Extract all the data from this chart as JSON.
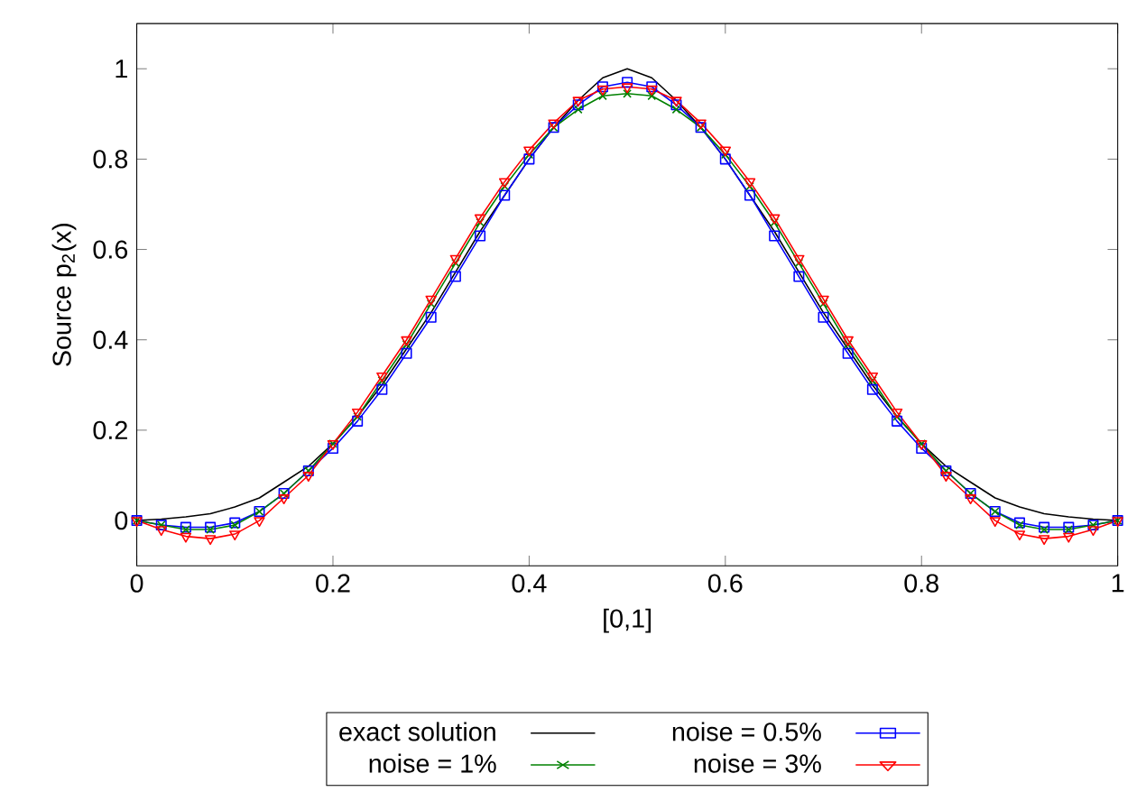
{
  "chart_data": {
    "type": "line",
    "xlabel": "[0,1]",
    "ylabel": "Source p$_{2}$(x)",
    "x": [
      0,
      0.025,
      0.05,
      0.075,
      0.1,
      0.125,
      0.15,
      0.175,
      0.2,
      0.225,
      0.25,
      0.275,
      0.3,
      0.325,
      0.35,
      0.375,
      0.4,
      0.425,
      0.45,
      0.475,
      0.5,
      0.525,
      0.55,
      0.575,
      0.6,
      0.625,
      0.65,
      0.675,
      0.7,
      0.725,
      0.75,
      0.775,
      0.8,
      0.825,
      0.85,
      0.875,
      0.9,
      0.925,
      0.95,
      0.975,
      1
    ],
    "xlim": [
      0,
      1
    ],
    "ylim": [
      -0.1,
      1.1
    ],
    "xticks": [
      0,
      0.2,
      0.4,
      0.6,
      0.8,
      1
    ],
    "yticks": [
      0,
      0.2,
      0.4,
      0.6,
      0.8,
      1
    ],
    "grid": false,
    "legend": "bottom",
    "series": [
      {
        "name": "exact solution",
        "color": "#000000",
        "marker": "none",
        "values": [
          0,
          0.003,
          0.008,
          0.015,
          0.03,
          0.05,
          0.085,
          0.12,
          0.17,
          0.23,
          0.3,
          0.38,
          0.46,
          0.55,
          0.64,
          0.72,
          0.8,
          0.87,
          0.93,
          0.98,
          1.0,
          0.98,
          0.93,
          0.87,
          0.8,
          0.72,
          0.64,
          0.55,
          0.46,
          0.38,
          0.3,
          0.23,
          0.17,
          0.12,
          0.085,
          0.05,
          0.03,
          0.015,
          0.008,
          0.003,
          0
        ]
      },
      {
        "name": "noise = 0.5%",
        "color": "#0000ff",
        "marker": "square",
        "values": [
          0,
          -0.01,
          -0.015,
          -0.015,
          -0.005,
          0.02,
          0.06,
          0.11,
          0.16,
          0.22,
          0.29,
          0.37,
          0.45,
          0.54,
          0.63,
          0.72,
          0.8,
          0.87,
          0.92,
          0.96,
          0.97,
          0.96,
          0.92,
          0.87,
          0.8,
          0.72,
          0.63,
          0.54,
          0.45,
          0.37,
          0.29,
          0.22,
          0.16,
          0.11,
          0.06,
          0.02,
          -0.005,
          -0.015,
          -0.015,
          -0.01,
          0
        ]
      },
      {
        "name": "noise = 1%",
        "color": "#008000",
        "marker": "cross",
        "values": [
          0,
          -0.01,
          -0.02,
          -0.02,
          -0.01,
          0.02,
          0.06,
          0.11,
          0.17,
          0.23,
          0.31,
          0.39,
          0.48,
          0.57,
          0.66,
          0.74,
          0.81,
          0.87,
          0.91,
          0.94,
          0.945,
          0.94,
          0.91,
          0.87,
          0.81,
          0.74,
          0.66,
          0.57,
          0.48,
          0.39,
          0.31,
          0.23,
          0.17,
          0.11,
          0.06,
          0.02,
          -0.01,
          -0.02,
          -0.02,
          -0.01,
          0
        ]
      },
      {
        "name": "noise = 3%",
        "color": "#ff0000",
        "marker": "triangle",
        "values": [
          0,
          -0.02,
          -0.035,
          -0.04,
          -0.03,
          0.0,
          0.05,
          0.1,
          0.17,
          0.24,
          0.32,
          0.4,
          0.49,
          0.58,
          0.67,
          0.75,
          0.82,
          0.88,
          0.93,
          0.955,
          0.96,
          0.955,
          0.93,
          0.88,
          0.82,
          0.75,
          0.67,
          0.58,
          0.49,
          0.4,
          0.32,
          0.24,
          0.17,
          0.1,
          0.05,
          0.0,
          -0.03,
          -0.04,
          -0.035,
          -0.02,
          0
        ]
      }
    ]
  }
}
